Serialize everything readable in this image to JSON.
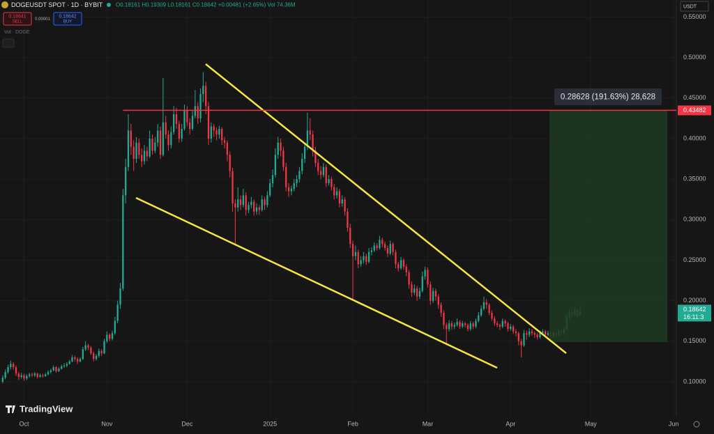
{
  "header": {
    "symbol": "DOGEUSDT SPOT · 1D · BYBIT",
    "ohlc": "O0.18161 H0.19309 L0.18161 C0.18642 +0.00481 (+2.65%) Vol 74.36M",
    "sell_price": "0.18641",
    "sell": "SELL",
    "spread": "0.00001",
    "buy_price": "0.18642",
    "buy": "BUY",
    "volume_label": "Vol · DOGE",
    "brand": "TradingView"
  },
  "chart_data": {
    "type": "candlestick",
    "up_color": "#22ab94",
    "down_color": "#f23645",
    "currency": "USDT",
    "resistance": 0.43482,
    "resistance_color": "#f23645",
    "last_price": 0.18642,
    "countdown": "16:11:3",
    "measure_label": "0.28628 (191.63%) 28,628",
    "xlim": [
      -1,
      252
    ],
    "ylim": [
      0.057,
      0.571
    ],
    "xticks": [
      {
        "value": 8,
        "label": "Oct"
      },
      {
        "value": 39,
        "label": "Nov"
      },
      {
        "value": 69,
        "label": "Dec"
      },
      {
        "value": 100,
        "label": "2025"
      },
      {
        "value": 131,
        "label": "Feb"
      },
      {
        "value": 159,
        "label": "Mar"
      },
      {
        "value": 190,
        "label": "Apr"
      },
      {
        "value": 220,
        "label": "May"
      },
      {
        "value": 251,
        "label": "Jun"
      }
    ],
    "yticks": [
      {
        "value": 0.1,
        "label": "0.10000"
      },
      {
        "value": 0.15,
        "label": "0.15000"
      },
      {
        "value": 0.2,
        "label": "0.20000"
      },
      {
        "value": 0.25,
        "label": "0.25000"
      },
      {
        "value": 0.3,
        "label": "0.30000"
      },
      {
        "value": 0.35,
        "label": "0.35000"
      },
      {
        "value": 0.4,
        "label": "0.40000"
      },
      {
        "value": 0.45,
        "label": "0.45000"
      },
      {
        "value": 0.5,
        "label": "0.50000"
      },
      {
        "value": 0.55,
        "label": "0.55000"
      }
    ],
    "candles": [
      [
        0.1,
        0.108,
        0.098,
        0.105
      ],
      [
        0.105,
        0.115,
        0.103,
        0.112
      ],
      [
        0.112,
        0.121,
        0.11,
        0.118
      ],
      [
        0.118,
        0.126,
        0.115,
        0.122
      ],
      [
        0.122,
        0.124,
        0.115,
        0.118
      ],
      [
        0.118,
        0.12,
        0.107,
        0.11
      ],
      [
        0.11,
        0.112,
        0.102,
        0.106
      ],
      [
        0.106,
        0.111,
        0.104,
        0.108
      ],
      [
        0.108,
        0.11,
        0.101,
        0.104
      ],
      [
        0.104,
        0.109,
        0.102,
        0.107
      ],
      [
        0.107,
        0.111,
        0.105,
        0.109
      ],
      [
        0.109,
        0.111,
        0.106,
        0.108
      ],
      [
        0.108,
        0.112,
        0.106,
        0.11
      ],
      [
        0.11,
        0.111,
        0.104,
        0.106
      ],
      [
        0.106,
        0.11,
        0.105,
        0.108
      ],
      [
        0.108,
        0.11,
        0.105,
        0.107
      ],
      [
        0.107,
        0.111,
        0.106,
        0.109
      ],
      [
        0.109,
        0.114,
        0.108,
        0.112
      ],
      [
        0.112,
        0.116,
        0.11,
        0.114
      ],
      [
        0.114,
        0.12,
        0.113,
        0.118
      ],
      [
        0.118,
        0.119,
        0.111,
        0.113
      ],
      [
        0.113,
        0.118,
        0.112,
        0.116
      ],
      [
        0.116,
        0.121,
        0.115,
        0.119
      ],
      [
        0.119,
        0.123,
        0.117,
        0.12
      ],
      [
        0.12,
        0.124,
        0.118,
        0.122
      ],
      [
        0.122,
        0.127,
        0.121,
        0.125
      ],
      [
        0.125,
        0.133,
        0.124,
        0.13
      ],
      [
        0.13,
        0.132,
        0.125,
        0.128
      ],
      [
        0.128,
        0.13,
        0.122,
        0.125
      ],
      [
        0.125,
        0.13,
        0.124,
        0.128
      ],
      [
        0.128,
        0.143,
        0.127,
        0.14
      ],
      [
        0.14,
        0.15,
        0.138,
        0.145
      ],
      [
        0.145,
        0.147,
        0.139,
        0.142
      ],
      [
        0.142,
        0.144,
        0.133,
        0.135
      ],
      [
        0.135,
        0.137,
        0.125,
        0.128
      ],
      [
        0.128,
        0.134,
        0.126,
        0.132
      ],
      [
        0.132,
        0.141,
        0.13,
        0.138
      ],
      [
        0.138,
        0.14,
        0.132,
        0.135
      ],
      [
        0.135,
        0.153,
        0.134,
        0.15
      ],
      [
        0.15,
        0.162,
        0.148,
        0.158
      ],
      [
        0.158,
        0.16,
        0.15,
        0.153
      ],
      [
        0.153,
        0.163,
        0.151,
        0.16
      ],
      [
        0.16,
        0.18,
        0.158,
        0.175
      ],
      [
        0.175,
        0.2,
        0.172,
        0.195
      ],
      [
        0.195,
        0.222,
        0.19,
        0.215
      ],
      [
        0.215,
        0.338,
        0.212,
        0.33
      ],
      [
        0.33,
        0.375,
        0.32,
        0.365
      ],
      [
        0.365,
        0.43,
        0.36,
        0.41
      ],
      [
        0.41,
        0.418,
        0.38,
        0.39
      ],
      [
        0.39,
        0.398,
        0.36,
        0.375
      ],
      [
        0.375,
        0.402,
        0.37,
        0.395
      ],
      [
        0.395,
        0.4,
        0.375,
        0.38
      ],
      [
        0.38,
        0.388,
        0.365,
        0.372
      ],
      [
        0.372,
        0.392,
        0.368,
        0.385
      ],
      [
        0.385,
        0.39,
        0.372,
        0.378
      ],
      [
        0.378,
        0.41,
        0.376,
        0.4
      ],
      [
        0.4,
        0.405,
        0.38,
        0.385
      ],
      [
        0.385,
        0.402,
        0.382,
        0.395
      ],
      [
        0.395,
        0.418,
        0.39,
        0.41
      ],
      [
        0.41,
        0.415,
        0.375,
        0.38
      ],
      [
        0.38,
        0.475,
        0.378,
        0.42
      ],
      [
        0.42,
        0.428,
        0.4,
        0.405
      ],
      [
        0.405,
        0.41,
        0.385,
        0.392
      ],
      [
        0.392,
        0.415,
        0.388,
        0.408
      ],
      [
        0.408,
        0.44,
        0.405,
        0.43
      ],
      [
        0.43,
        0.438,
        0.412,
        0.418
      ],
      [
        0.418,
        0.422,
        0.395,
        0.4
      ],
      [
        0.4,
        0.418,
        0.396,
        0.412
      ],
      [
        0.412,
        0.442,
        0.41,
        0.435
      ],
      [
        0.435,
        0.44,
        0.415,
        0.42
      ],
      [
        0.42,
        0.425,
        0.405,
        0.412
      ],
      [
        0.412,
        0.435,
        0.41,
        0.428
      ],
      [
        0.428,
        0.46,
        0.425,
        0.44
      ],
      [
        0.44,
        0.445,
        0.418,
        0.425
      ],
      [
        0.425,
        0.462,
        0.42,
        0.455
      ],
      [
        0.455,
        0.482,
        0.445,
        0.465
      ],
      [
        0.465,
        0.47,
        0.43,
        0.44
      ],
      [
        0.44,
        0.445,
        0.392,
        0.4
      ],
      [
        0.4,
        0.42,
        0.395,
        0.415
      ],
      [
        0.415,
        0.418,
        0.402,
        0.41
      ],
      [
        0.41,
        0.414,
        0.398,
        0.405
      ],
      [
        0.405,
        0.416,
        0.4,
        0.412
      ],
      [
        0.412,
        0.414,
        0.392,
        0.398
      ],
      [
        0.398,
        0.402,
        0.388,
        0.395
      ],
      [
        0.395,
        0.398,
        0.372,
        0.38
      ],
      [
        0.38,
        0.384,
        0.352,
        0.36
      ],
      [
        0.36,
        0.364,
        0.31,
        0.32
      ],
      [
        0.32,
        0.325,
        0.27,
        0.315
      ],
      [
        0.315,
        0.34,
        0.31,
        0.325
      ],
      [
        0.325,
        0.33,
        0.312,
        0.318
      ],
      [
        0.318,
        0.338,
        0.315,
        0.33
      ],
      [
        0.33,
        0.334,
        0.305,
        0.312
      ],
      [
        0.312,
        0.322,
        0.308,
        0.318
      ],
      [
        0.318,
        0.328,
        0.314,
        0.322
      ],
      [
        0.322,
        0.325,
        0.305,
        0.31
      ],
      [
        0.31,
        0.32,
        0.306,
        0.315
      ],
      [
        0.315,
        0.318,
        0.306,
        0.312
      ],
      [
        0.312,
        0.33,
        0.31,
        0.325
      ],
      [
        0.325,
        0.328,
        0.312,
        0.318
      ],
      [
        0.318,
        0.335,
        0.315,
        0.33
      ],
      [
        0.33,
        0.35,
        0.328,
        0.345
      ],
      [
        0.345,
        0.362,
        0.34,
        0.355
      ],
      [
        0.355,
        0.388,
        0.352,
        0.38
      ],
      [
        0.38,
        0.402,
        0.375,
        0.395
      ],
      [
        0.395,
        0.4,
        0.378,
        0.385
      ],
      [
        0.385,
        0.39,
        0.36,
        0.365
      ],
      [
        0.365,
        0.37,
        0.335,
        0.34
      ],
      [
        0.34,
        0.345,
        0.328,
        0.335
      ],
      [
        0.335,
        0.342,
        0.33,
        0.338
      ],
      [
        0.338,
        0.35,
        0.335,
        0.345
      ],
      [
        0.345,
        0.355,
        0.34,
        0.35
      ],
      [
        0.35,
        0.365,
        0.346,
        0.36
      ],
      [
        0.36,
        0.382,
        0.356,
        0.375
      ],
      [
        0.375,
        0.395,
        0.37,
        0.39
      ],
      [
        0.39,
        0.432,
        0.386,
        0.41
      ],
      [
        0.41,
        0.425,
        0.398,
        0.405
      ],
      [
        0.405,
        0.41,
        0.378,
        0.385
      ],
      [
        0.385,
        0.39,
        0.365,
        0.37
      ],
      [
        0.37,
        0.375,
        0.355,
        0.36
      ],
      [
        0.36,
        0.366,
        0.35,
        0.355
      ],
      [
        0.355,
        0.37,
        0.352,
        0.365
      ],
      [
        0.365,
        0.368,
        0.34,
        0.345
      ],
      [
        0.345,
        0.355,
        0.342,
        0.35
      ],
      [
        0.35,
        0.353,
        0.336,
        0.34
      ],
      [
        0.34,
        0.344,
        0.325,
        0.33
      ],
      [
        0.33,
        0.34,
        0.326,
        0.335
      ],
      [
        0.335,
        0.338,
        0.315,
        0.32
      ],
      [
        0.32,
        0.33,
        0.316,
        0.325
      ],
      [
        0.325,
        0.328,
        0.305,
        0.31
      ],
      [
        0.31,
        0.314,
        0.285,
        0.29
      ],
      [
        0.29,
        0.295,
        0.265,
        0.27
      ],
      [
        0.27,
        0.274,
        0.2,
        0.255
      ],
      [
        0.255,
        0.268,
        0.25,
        0.26
      ],
      [
        0.26,
        0.263,
        0.24,
        0.245
      ],
      [
        0.245,
        0.255,
        0.242,
        0.25
      ],
      [
        0.25,
        0.26,
        0.246,
        0.255
      ],
      [
        0.255,
        0.258,
        0.244,
        0.248
      ],
      [
        0.248,
        0.265,
        0.246,
        0.26
      ],
      [
        0.26,
        0.266,
        0.256,
        0.262
      ],
      [
        0.262,
        0.272,
        0.26,
        0.268
      ],
      [
        0.268,
        0.271,
        0.262,
        0.265
      ],
      [
        0.265,
        0.28,
        0.263,
        0.275
      ],
      [
        0.275,
        0.278,
        0.266,
        0.27
      ],
      [
        0.27,
        0.273,
        0.262,
        0.265
      ],
      [
        0.265,
        0.268,
        0.254,
        0.258
      ],
      [
        0.258,
        0.274,
        0.256,
        0.27
      ],
      [
        0.27,
        0.272,
        0.256,
        0.26
      ],
      [
        0.26,
        0.263,
        0.24,
        0.245
      ],
      [
        0.245,
        0.248,
        0.236,
        0.24
      ],
      [
        0.24,
        0.254,
        0.238,
        0.25
      ],
      [
        0.25,
        0.252,
        0.238,
        0.242
      ],
      [
        0.242,
        0.245,
        0.23,
        0.235
      ],
      [
        0.235,
        0.238,
        0.215,
        0.22
      ],
      [
        0.22,
        0.224,
        0.205,
        0.21
      ],
      [
        0.21,
        0.22,
        0.207,
        0.215
      ],
      [
        0.215,
        0.218,
        0.2,
        0.205
      ],
      [
        0.205,
        0.216,
        0.202,
        0.212
      ],
      [
        0.212,
        0.236,
        0.21,
        0.23
      ],
      [
        0.23,
        0.242,
        0.226,
        0.238
      ],
      [
        0.238,
        0.241,
        0.216,
        0.22
      ],
      [
        0.22,
        0.224,
        0.195,
        0.2
      ],
      [
        0.2,
        0.216,
        0.197,
        0.212
      ],
      [
        0.212,
        0.215,
        0.2,
        0.205
      ],
      [
        0.205,
        0.208,
        0.19,
        0.195
      ],
      [
        0.195,
        0.198,
        0.18,
        0.185
      ],
      [
        0.185,
        0.188,
        0.165,
        0.17
      ],
      [
        0.17,
        0.173,
        0.145,
        0.165
      ],
      [
        0.165,
        0.176,
        0.162,
        0.172
      ],
      [
        0.172,
        0.175,
        0.164,
        0.168
      ],
      [
        0.168,
        0.173,
        0.165,
        0.17
      ],
      [
        0.17,
        0.178,
        0.168,
        0.174
      ],
      [
        0.174,
        0.176,
        0.165,
        0.168
      ],
      [
        0.168,
        0.175,
        0.166,
        0.172
      ],
      [
        0.172,
        0.174,
        0.167,
        0.17
      ],
      [
        0.17,
        0.172,
        0.162,
        0.165
      ],
      [
        0.165,
        0.175,
        0.163,
        0.172
      ],
      [
        0.172,
        0.174,
        0.165,
        0.168
      ],
      [
        0.168,
        0.178,
        0.166,
        0.175
      ],
      [
        0.175,
        0.186,
        0.173,
        0.182
      ],
      [
        0.182,
        0.194,
        0.18,
        0.19
      ],
      [
        0.19,
        0.205,
        0.188,
        0.198
      ],
      [
        0.198,
        0.202,
        0.19,
        0.195
      ],
      [
        0.195,
        0.197,
        0.182,
        0.185
      ],
      [
        0.185,
        0.188,
        0.175,
        0.178
      ],
      [
        0.178,
        0.181,
        0.169,
        0.172
      ],
      [
        0.172,
        0.175,
        0.167,
        0.17
      ],
      [
        0.17,
        0.172,
        0.164,
        0.168
      ],
      [
        0.168,
        0.178,
        0.166,
        0.175
      ],
      [
        0.175,
        0.177,
        0.168,
        0.172
      ],
      [
        0.172,
        0.174,
        0.162,
        0.165
      ],
      [
        0.165,
        0.171,
        0.163,
        0.168
      ],
      [
        0.168,
        0.17,
        0.159,
        0.162
      ],
      [
        0.162,
        0.165,
        0.156,
        0.16
      ],
      [
        0.16,
        0.162,
        0.145,
        0.15
      ],
      [
        0.15,
        0.153,
        0.13,
        0.145
      ],
      [
        0.145,
        0.164,
        0.143,
        0.16
      ],
      [
        0.16,
        0.163,
        0.152,
        0.158
      ],
      [
        0.158,
        0.166,
        0.155,
        0.162
      ],
      [
        0.162,
        0.165,
        0.157,
        0.16
      ],
      [
        0.16,
        0.162,
        0.154,
        0.158
      ],
      [
        0.158,
        0.16,
        0.152,
        0.155
      ],
      [
        0.155,
        0.163,
        0.153,
        0.16
      ],
      [
        0.16,
        0.165,
        0.158,
        0.162
      ],
      [
        0.162,
        0.164,
        0.155,
        0.158
      ],
      [
        0.158,
        0.163,
        0.156,
        0.16
      ],
      [
        0.16,
        0.162,
        0.154,
        0.157
      ],
      [
        0.157,
        0.162,
        0.155,
        0.16
      ],
      [
        0.16,
        0.162,
        0.155,
        0.158
      ],
      [
        0.158,
        0.165,
        0.156,
        0.162
      ],
      [
        0.162,
        0.164,
        0.157,
        0.16
      ],
      [
        0.16,
        0.168,
        0.158,
        0.165
      ],
      [
        0.165,
        0.184,
        0.163,
        0.18
      ],
      [
        0.18,
        0.189,
        0.177,
        0.185
      ],
      [
        0.185,
        0.188,
        0.179,
        0.183
      ],
      [
        0.183,
        0.192,
        0.181,
        0.188
      ],
      [
        0.188,
        0.19,
        0.179,
        0.18161
      ],
      [
        0.18161,
        0.19309,
        0.18161,
        0.18642
      ]
    ]
  }
}
